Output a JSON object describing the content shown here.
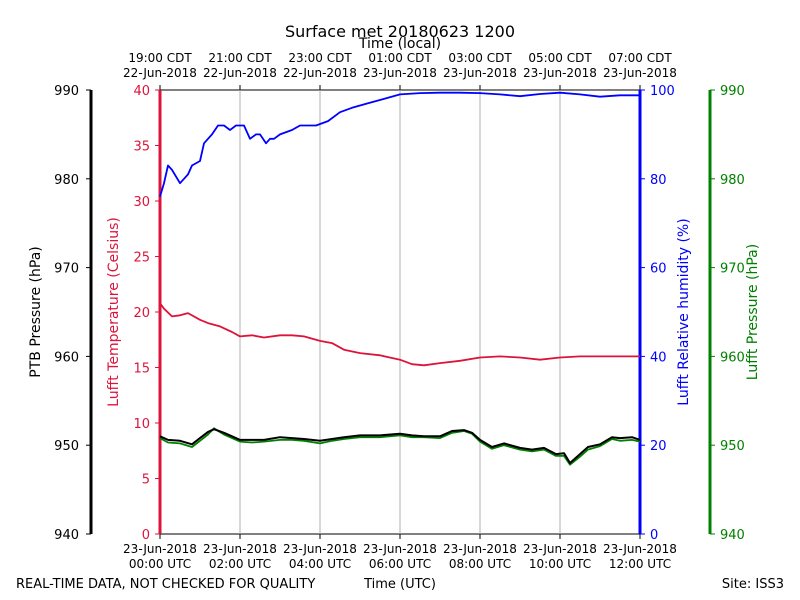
{
  "chart_data": {
    "type": "line",
    "title": "Surface met 20180623 1200",
    "top_axis": {
      "label": "Time (local)",
      "ticks": [
        {
          "line1": "19:00 CDT",
          "line2": "22-Jun-2018"
        },
        {
          "line1": "21:00 CDT",
          "line2": "22-Jun-2018"
        },
        {
          "line1": "23:00 CDT",
          "line2": "22-Jun-2018"
        },
        {
          "line1": "01:00 CDT",
          "line2": "23-Jun-2018"
        },
        {
          "line1": "03:00 CDT",
          "line2": "23-Jun-2018"
        },
        {
          "line1": "05:00 CDT",
          "line2": "23-Jun-2018"
        },
        {
          "line1": "07:00 CDT",
          "line2": "23-Jun-2018"
        }
      ]
    },
    "bottom_axis": {
      "label": "Time (UTC)",
      "range_hours": [
        0,
        12
      ],
      "ticks": [
        {
          "line1": "23-Jun-2018",
          "line2": "00:00 UTC"
        },
        {
          "line1": "23-Jun-2018",
          "line2": "02:00 UTC"
        },
        {
          "line1": "23-Jun-2018",
          "line2": "04:00 UTC"
        },
        {
          "line1": "23-Jun-2018",
          "line2": "06:00 UTC"
        },
        {
          "line1": "23-Jun-2018",
          "line2": "08:00 UTC"
        },
        {
          "line1": "23-Jun-2018",
          "line2": "10:00 UTC"
        },
        {
          "line1": "23-Jun-2018",
          "line2": "12:00 UTC"
        }
      ]
    },
    "y_axes": [
      {
        "id": "ptb",
        "label": "PTB Pressure (hPa)",
        "color": "#000000",
        "ylim": [
          940,
          990
        ],
        "ticks": [
          940,
          950,
          960,
          970,
          980,
          990
        ]
      },
      {
        "id": "temp",
        "label": "Lufft Temperature (Celsius)",
        "color": "#dc143c",
        "ylim": [
          0,
          40
        ],
        "ticks": [
          0,
          5,
          10,
          15,
          20,
          25,
          30,
          35,
          40
        ]
      },
      {
        "id": "rh",
        "label": "Lufft Relative humidity (%)",
        "color": "#0000ff",
        "ylim": [
          0,
          100
        ],
        "ticks": [
          0,
          20,
          40,
          60,
          80,
          100
        ]
      },
      {
        "id": "lp",
        "label": "Lufft Pressure (hPa)",
        "color": "#008000",
        "ylim": [
          940,
          990
        ],
        "ticks": [
          940,
          950,
          960,
          970,
          980,
          990
        ]
      }
    ],
    "grid": "vertical",
    "series": [
      {
        "axis": "rh",
        "color": "#0000ff",
        "x": [
          0,
          0.1,
          0.2,
          0.3,
          0.5,
          0.6,
          0.7,
          0.8,
          1.0,
          1.1,
          1.2,
          1.3,
          1.45,
          1.6,
          1.75,
          1.9,
          2.0,
          2.1,
          2.25,
          2.4,
          2.5,
          2.65,
          2.75,
          2.85,
          3.0,
          3.3,
          3.5,
          3.7,
          3.9,
          4.2,
          4.5,
          4.8,
          5.2,
          5.6,
          6.0,
          6.5,
          7.0,
          7.5,
          8.0,
          8.5,
          9.0,
          9.5,
          10.0,
          10.5,
          11.0,
          11.5,
          12.0
        ],
        "values": [
          76,
          79,
          83,
          82,
          79,
          80,
          81,
          83,
          84,
          88,
          89,
          90,
          92,
          92,
          91,
          92,
          92,
          92,
          89,
          90,
          90,
          88,
          89,
          89,
          90,
          91,
          92,
          92,
          92,
          93,
          95,
          96,
          97,
          98,
          99,
          99.3,
          99.4,
          99.4,
          99.3,
          99,
          98.6,
          99.1,
          99.4,
          99,
          98.5,
          98.8,
          98.8
        ]
      },
      {
        "axis": "temp",
        "color": "#dc143c",
        "x": [
          0,
          0.1,
          0.3,
          0.5,
          0.7,
          1.0,
          1.2,
          1.5,
          1.8,
          2.0,
          2.3,
          2.6,
          3.0,
          3.3,
          3.6,
          4.0,
          4.3,
          4.6,
          5.0,
          5.5,
          6.0,
          6.3,
          6.6,
          7.0,
          7.5,
          8.0,
          8.5,
          9.0,
          9.5,
          10.0,
          10.5,
          11.0,
          11.5,
          12.0
        ],
        "values": [
          20.8,
          20.3,
          19.6,
          19.7,
          19.9,
          19.3,
          19.0,
          18.7,
          18.2,
          17.8,
          17.9,
          17.7,
          17.9,
          17.9,
          17.8,
          17.4,
          17.2,
          16.6,
          16.3,
          16.1,
          15.7,
          15.3,
          15.2,
          15.4,
          15.6,
          15.9,
          16.0,
          15.9,
          15.7,
          15.9,
          16.0,
          16.0,
          16.0,
          16.0
        ]
      },
      {
        "axis": "lp",
        "color": "#008000",
        "x": [
          0,
          0.2,
          0.5,
          0.8,
          1.0,
          1.2,
          1.35,
          1.6,
          1.8,
          2.0,
          2.3,
          2.6,
          3.0,
          3.3,
          3.6,
          4.0,
          4.3,
          4.6,
          5.0,
          5.5,
          6.0,
          6.3,
          6.6,
          7.0,
          7.3,
          7.6,
          7.8,
          8.0,
          8.3,
          8.6,
          9.0,
          9.3,
          9.6,
          9.9,
          10.1,
          10.25,
          10.5,
          10.7,
          11.0,
          11.3,
          11.5,
          11.8,
          12.0
        ],
        "values": [
          950.8,
          950.3,
          950.2,
          949.8,
          950.5,
          951.2,
          951.9,
          951.2,
          950.8,
          950.4,
          950.3,
          950.4,
          950.6,
          950.6,
          950.5,
          950.2,
          950.5,
          950.7,
          950.9,
          950.9,
          951.1,
          950.9,
          950.9,
          950.8,
          951.4,
          951.6,
          951.3,
          950.4,
          949.6,
          950.0,
          949.5,
          949.3,
          949.5,
          948.8,
          948.8,
          947.8,
          948.7,
          949.5,
          949.9,
          950.7,
          950.5,
          950.6,
          950.4
        ]
      },
      {
        "axis": "ptb",
        "color": "#000000",
        "x": [
          0,
          0.2,
          0.5,
          0.8,
          1.0,
          1.2,
          1.35,
          1.6,
          1.8,
          2.0,
          2.3,
          2.6,
          3.0,
          3.3,
          3.6,
          4.0,
          4.3,
          4.6,
          5.0,
          5.5,
          6.0,
          6.3,
          6.6,
          7.0,
          7.3,
          7.6,
          7.8,
          8.0,
          8.3,
          8.6,
          9.0,
          9.3,
          9.6,
          9.9,
          10.1,
          10.25,
          10.5,
          10.7,
          11.0,
          11.3,
          11.5,
          11.8,
          12.0
        ],
        "values": [
          951.0,
          950.6,
          950.5,
          950.1,
          950.8,
          951.5,
          951.8,
          951.4,
          951.0,
          950.6,
          950.6,
          950.6,
          950.9,
          950.8,
          950.7,
          950.5,
          950.7,
          950.9,
          951.1,
          951.1,
          951.3,
          951.1,
          951.0,
          951.0,
          951.6,
          951.7,
          951.4,
          950.6,
          949.8,
          950.2,
          949.7,
          949.5,
          949.7,
          949.0,
          949.1,
          948.0,
          949.0,
          949.8,
          950.1,
          950.9,
          950.8,
          950.9,
          950.6
        ]
      }
    ]
  },
  "footer": {
    "disclaimer": "REAL-TIME DATA, NOT CHECKED FOR QUALITY",
    "xlabel": "Time (UTC)",
    "site": "Site: ISS3"
  }
}
